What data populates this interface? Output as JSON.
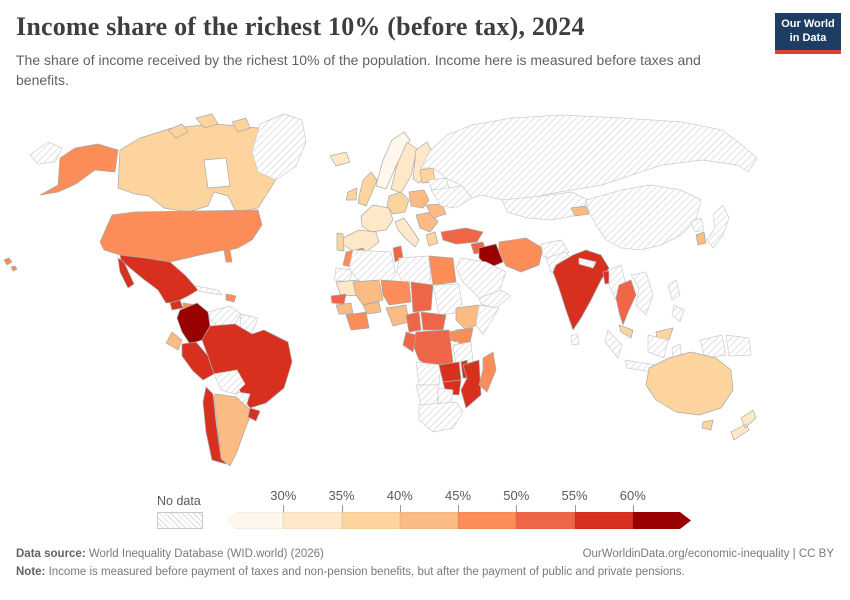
{
  "header": {
    "title": "Income share of the richest 10% (before tax), 2024",
    "subtitle": "The share of income received by the richest 10% of the population. Income here is measured before taxes and benefits.",
    "logo": {
      "line1": "Our World",
      "line2": "in Data",
      "bg_color": "#1d3d63",
      "accent_color": "#e04034"
    }
  },
  "legend": {
    "no_data_label": "No data",
    "tick_labels": [
      "30%",
      "35%",
      "40%",
      "45%",
      "50%",
      "55%",
      "60%"
    ]
  },
  "footer": {
    "source_label": "Data source:",
    "source_text": " World Inequality Database (WID.world) (2026)",
    "link_text": "OurWorldinData.org/economic-inequality | CC BY",
    "note_label": "Note:",
    "note_text": " Income is measured before payment of taxes and non-pension benefits, but after the payment of public and private pensions."
  },
  "chart_data": {
    "type": "choropleth",
    "title": "Income share of the richest 10% (before tax), 2024",
    "unit": "% of income received by richest 10%",
    "legend_position": "bottom",
    "bins": [
      {
        "key": "lt30",
        "label": "<30%",
        "color": "#FFF7EC"
      },
      {
        "key": "30-35",
        "label": "30-35%",
        "color": "#FEE8C8"
      },
      {
        "key": "35-40",
        "label": "35-40%",
        "color": "#FDD49E"
      },
      {
        "key": "40-45",
        "label": "40-45%",
        "color": "#FDBB84"
      },
      {
        "key": "45-50",
        "label": "45-50%",
        "color": "#FC8D59"
      },
      {
        "key": "50-55",
        "label": "50-55%",
        "color": "#EF6548"
      },
      {
        "key": "55-60",
        "label": "55-60%",
        "color": "#D7301F"
      },
      {
        "key": "gt60",
        "label": ">60%",
        "color": "#990000"
      }
    ],
    "no_data": {
      "key": "no-data",
      "label": "No data",
      "pattern": "diagonal-hatch"
    },
    "countries": {
      "chukotka": "no-data",
      "greenland": "no-data",
      "cuba": "no-data",
      "venezuela": "no-data",
      "guyanas": "no-data",
      "bolivia": "no-data",
      "paraguay": "no-data",
      "belarus": "no-data",
      "ukraine": "no-data",
      "russia": "no-data",
      "kazakhstan-central-asia": "no-data",
      "saudi-arabia": "no-data",
      "yemen-oman": "no-data",
      "afghanistan": "no-data",
      "pakistan": "no-data",
      "nepal": "no-data",
      "sri-lanka": "no-data",
      "china-mongolia": "no-data",
      "myanmar": "no-data",
      "laos-vietnam": "no-data",
      "indonesia": "no-data",
      "papua-new-guinea": "no-data",
      "philippines": "no-data",
      "japan": "no-data",
      "north-korea": "no-data",
      "western-sahara": "no-data",
      "algeria": "no-data",
      "libya": "no-data",
      "sudan": "no-data",
      "somalia": "no-data",
      "tanzania": "no-data",
      "angola": "no-data",
      "namibia": "no-data",
      "botswana": "no-data",
      "south-africa": "no-data",
      "norway": "lt30",
      "iceland": "30-35",
      "sweden": "30-35",
      "finland": "30-35",
      "france": "30-35",
      "spain": "30-35",
      "italy": "30-35",
      "mauritania": "30-35",
      "new-zealand": "30-35",
      "uk": "35-40",
      "ireland": "35-40",
      "portugal": "35-40",
      "germany": "35-40",
      "baltics": "35-40",
      "greece": "35-40",
      "canada": "35-40",
      "australia": "35-40",
      "malaysia": "35-40",
      "poland": "40-45",
      "balkans": "40-45",
      "romania": "40-45",
      "ecuador": "40-45",
      "argentina": "40-45",
      "guinea": "40-45",
      "mali": "40-45",
      "burkina-faso": "40-45",
      "nigeria": "40-45",
      "ethiopia": "40-45",
      "kyrgyzstan": "40-45",
      "south-korea": "40-45",
      "usa": "45-50",
      "alaska": "45-50",
      "hawaii": "45-50",
      "morocco": "45-50",
      "egypt": "45-50",
      "niger": "45-50",
      "ghana-ivory-coast": "45-50",
      "kenya": "45-50",
      "uganda": "45-50",
      "madagascar": "45-50",
      "iran": "45-50",
      "hispaniola": "45-50",
      "honduras-nicaragua": "45-50",
      "turkey": "50-55",
      "tunisia": "50-55",
      "syria": "50-55",
      "chad": "50-55",
      "cameroon": "50-55",
      "central-african-republic": "50-55",
      "drc": "50-55",
      "congo-gabon": "50-55",
      "thailand": "50-55",
      "costa-rica-panama": "50-55",
      "senegal": "50-55",
      "mexico": "55-60",
      "guatemala": "55-60",
      "peru": "55-60",
      "brazil": "55-60",
      "chile": "55-60",
      "uruguay": "55-60",
      "india": "55-60",
      "bangladesh": "55-60",
      "zambia": "55-60",
      "zimbabwe": "55-60",
      "malawi": "55-60",
      "mozambique": "55-60",
      "colombia": "gt60",
      "iraq": "gt60"
    }
  }
}
